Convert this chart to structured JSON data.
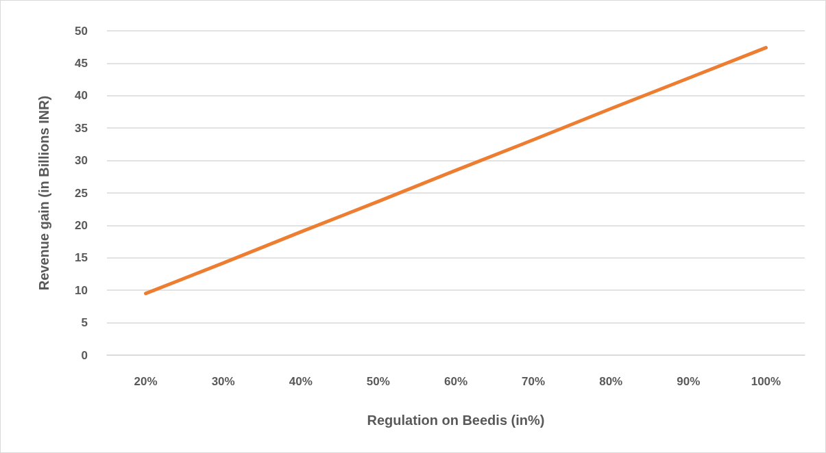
{
  "chart_data": {
    "type": "line",
    "xlabel": "Regulation on Beedis (in%)",
    "ylabel": "Revenue gain (in Billions INR)",
    "categories": [
      "20%",
      "30%",
      "40%",
      "50%",
      "60%",
      "70%",
      "80%",
      "90%",
      "100%"
    ],
    "series": [
      {
        "color": "#ed7d31",
        "values": [
          9.5,
          14.2,
          19,
          23.7,
          28.5,
          33.2,
          38,
          42.7,
          47.4
        ]
      }
    ],
    "ylim": [
      0,
      50
    ],
    "yticks": [
      0,
      5,
      10,
      15,
      20,
      25,
      30,
      35,
      40,
      45,
      50
    ],
    "grid": "y",
    "marker": "none",
    "line_style": "solid"
  }
}
